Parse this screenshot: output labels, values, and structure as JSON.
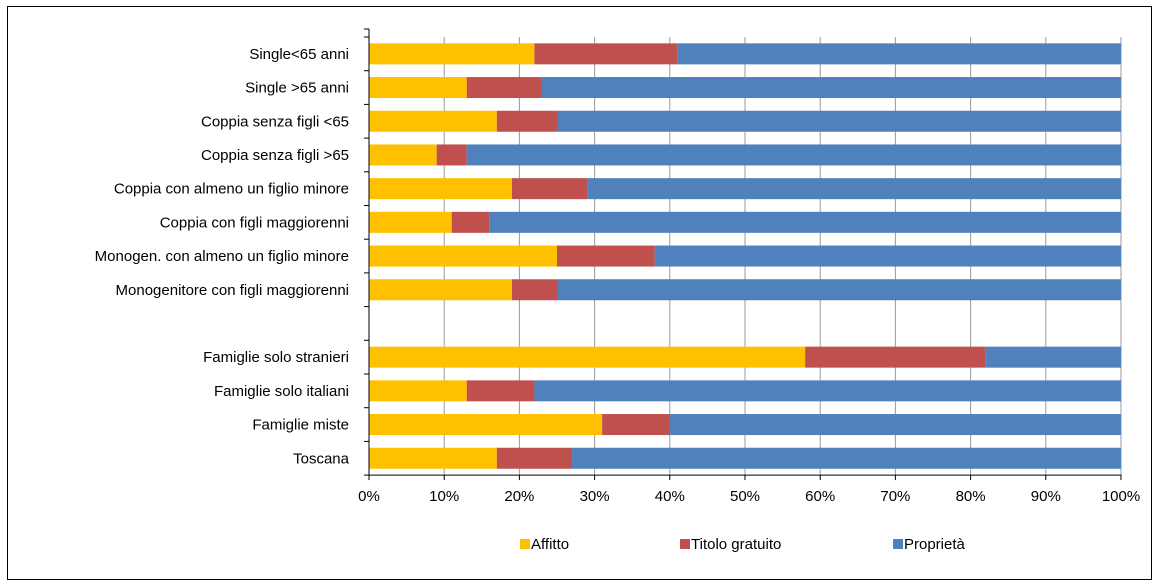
{
  "chart_data": {
    "type": "bar",
    "orientation": "horizontal",
    "stacked": true,
    "categories": [
      "Single<65 anni",
      "Single >65 anni",
      "Coppia senza figli <65",
      "Coppia senza figli >65",
      "Coppia con almeno un figlio minore",
      "Coppia con figli maggiorenni",
      "Monogen. con almeno un figlio minore",
      "Monogenitore con figli maggiorenni",
      "",
      "Famiglie solo stranieri",
      "Famiglie solo italiani",
      "Famiglie miste",
      "Toscana"
    ],
    "series": [
      {
        "name": "Affitto",
        "color": "#FFC000",
        "values": [
          22,
          13,
          17,
          9,
          19,
          11,
          25,
          19,
          null,
          58,
          13,
          31,
          17
        ]
      },
      {
        "name": "Titolo gratuito",
        "color": "#C0504D",
        "values": [
          19,
          10,
          8,
          4,
          10,
          5,
          13,
          6,
          null,
          24,
          9,
          9,
          10
        ]
      },
      {
        "name": "Proprietà",
        "color": "#4F81BD",
        "values": [
          59,
          77,
          75,
          87,
          71,
          84,
          62,
          75,
          null,
          18,
          78,
          60,
          73
        ]
      }
    ],
    "xticks": [
      "0%",
      "10%",
      "20%",
      "30%",
      "40%",
      "50%",
      "60%",
      "70%",
      "80%",
      "90%",
      "100%"
    ],
    "xlim": [
      0,
      100
    ],
    "grid": "vertical",
    "legend": "bottom"
  }
}
